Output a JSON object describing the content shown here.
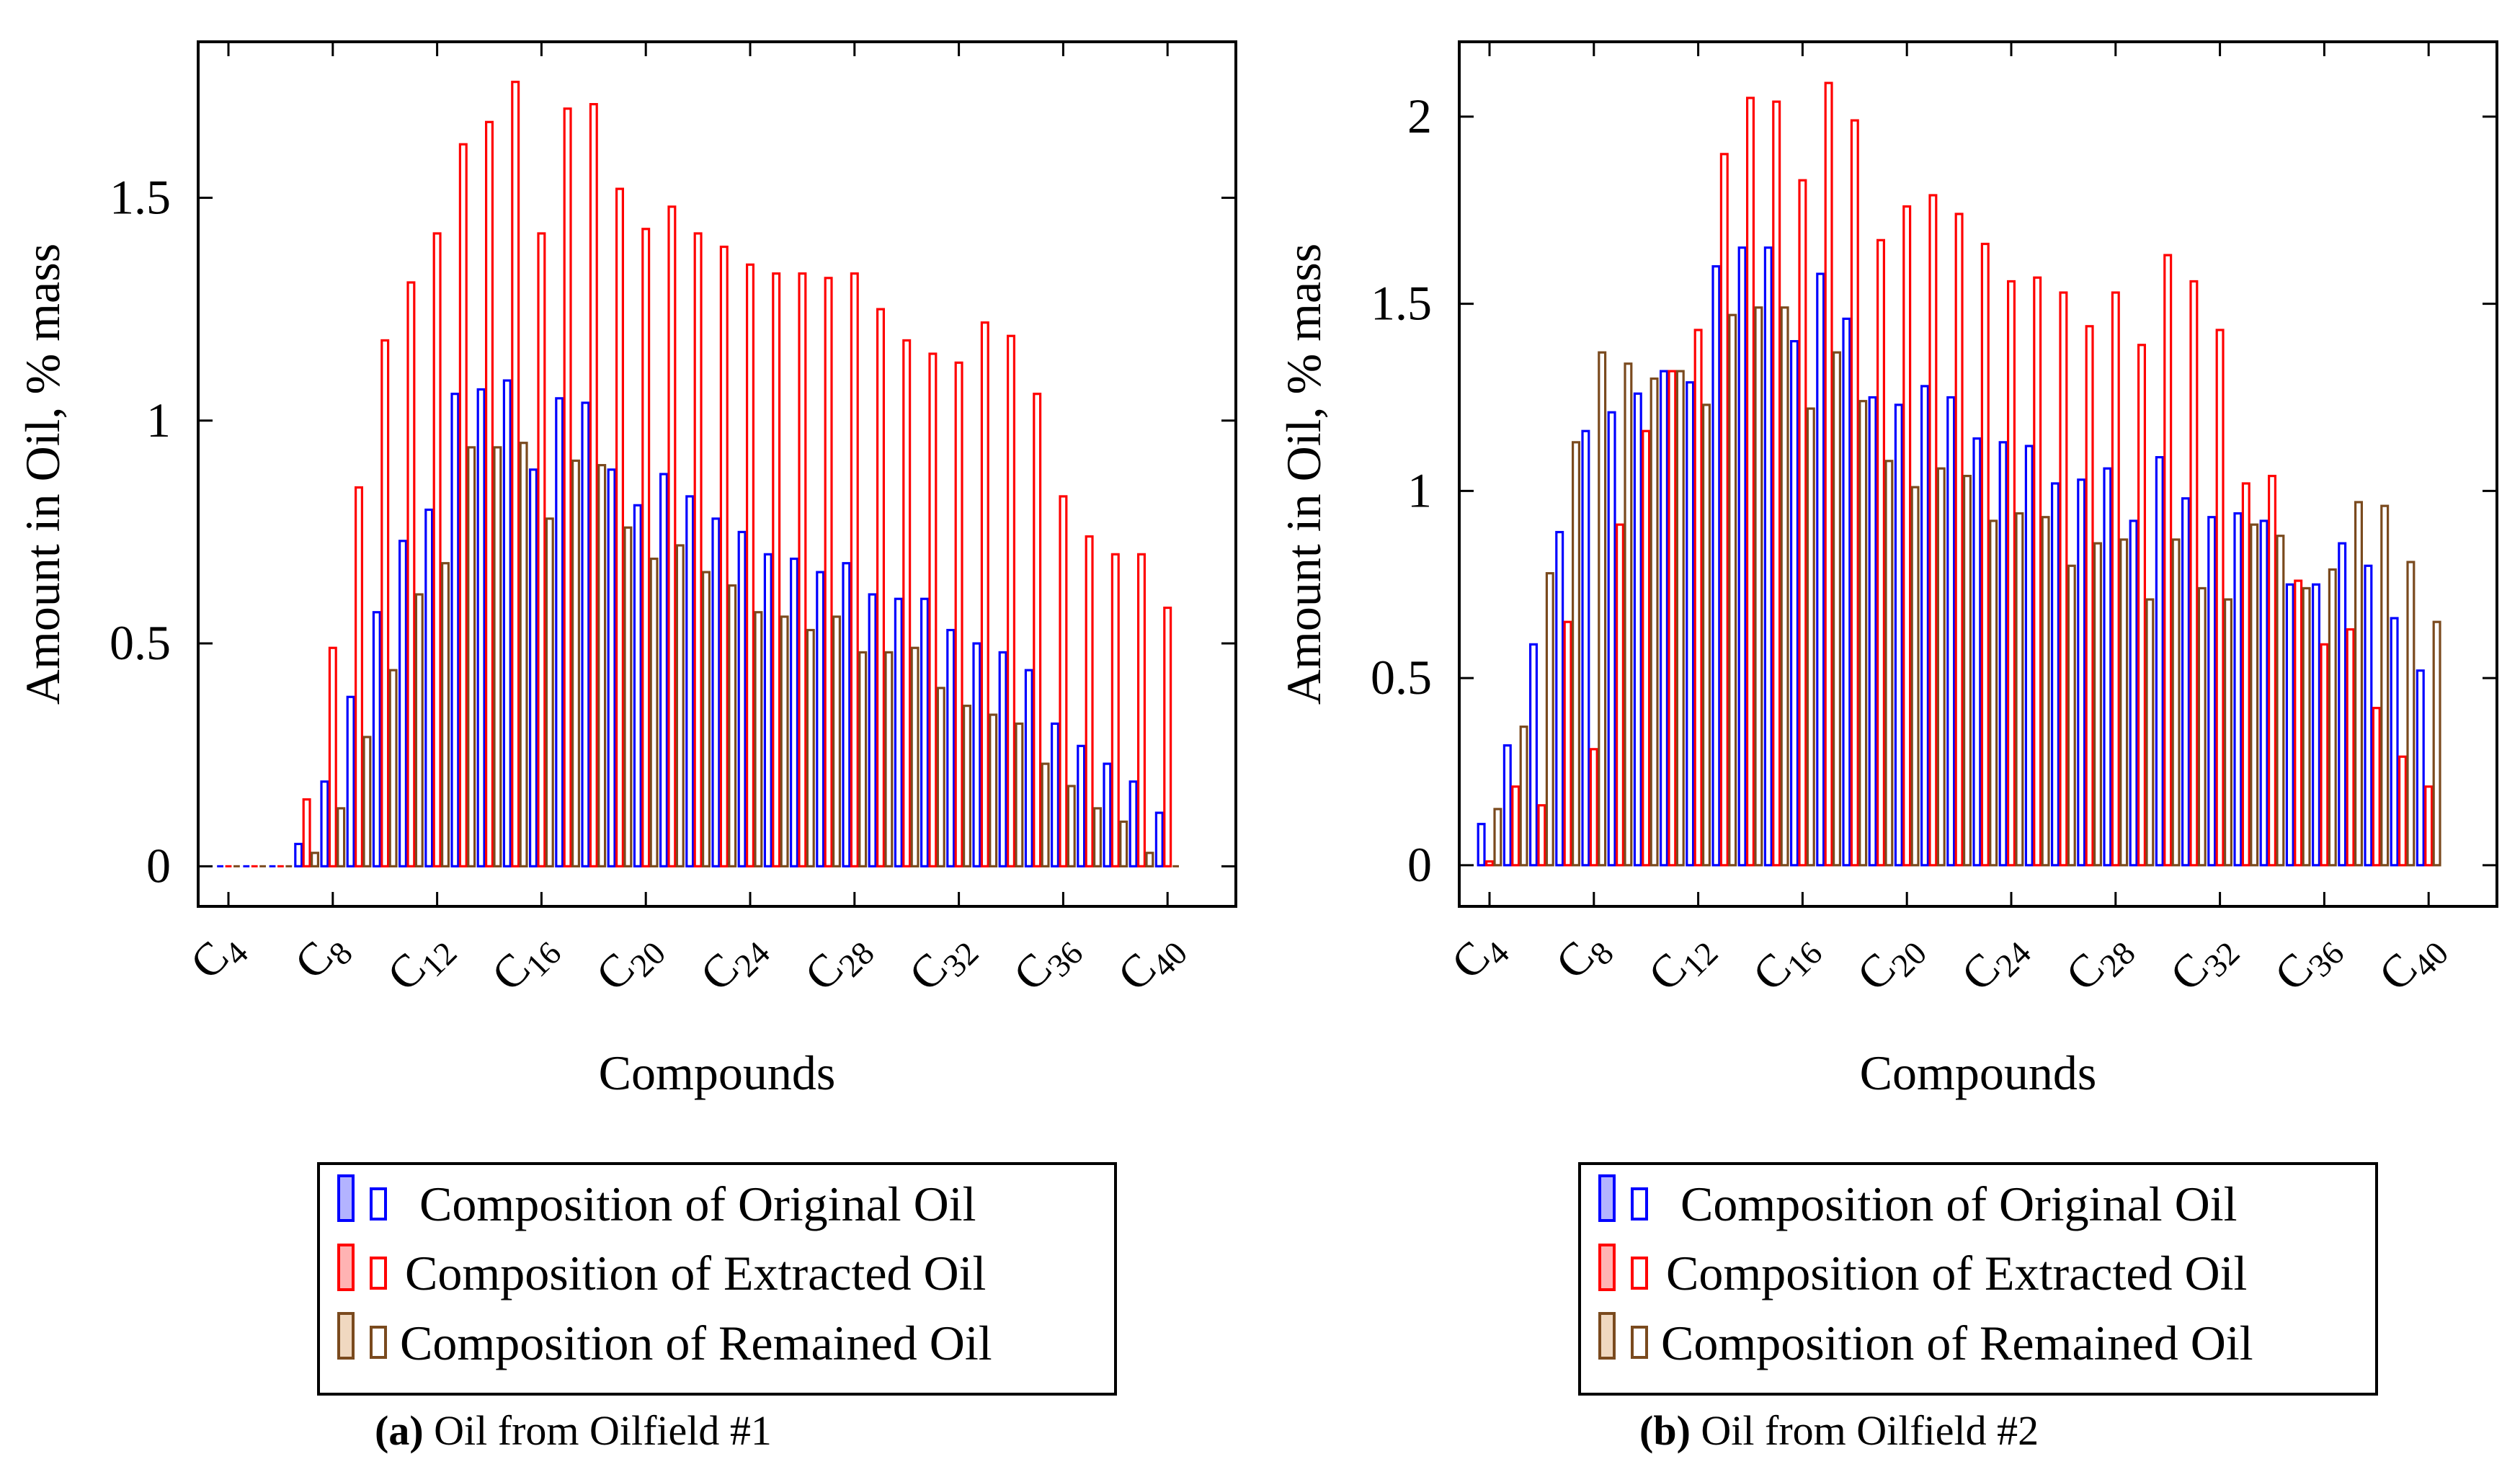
{
  "colors": {
    "original": "#0000ff",
    "original_fill": "#b3b3ff",
    "extracted": "#ff0000",
    "extracted_fill": "#ffb3b3",
    "remained": "#7a4a1e",
    "remained_fill": "#f0d8c0"
  },
  "chart_data": [
    {
      "type": "bar",
      "title": "",
      "xlabel": "Compounds",
      "ylabel": "Amount in Oil, % mass",
      "caption_label": "(a)",
      "caption_text": " Oil from Oilfield #1",
      "legend_position": "below",
      "ylim": [
        -0.09,
        1.85
      ],
      "yticks": [
        "0",
        "0.5",
        "1",
        "1.5"
      ],
      "ytick_values": [
        0,
        0.5,
        1,
        1.5
      ],
      "xtick_labels": [
        {
          "base": "C",
          "sub": "4"
        },
        {
          "base": "C",
          "sub": "8"
        },
        {
          "base": "C",
          "sub": "12"
        },
        {
          "base": "C",
          "sub": "16"
        },
        {
          "base": "C",
          "sub": "20"
        },
        {
          "base": "C",
          "sub": "24"
        },
        {
          "base": "C",
          "sub": "28"
        },
        {
          "base": "C",
          "sub": "32"
        },
        {
          "base": "C",
          "sub": "36"
        },
        {
          "base": "C",
          "sub": "40"
        }
      ],
      "categories": [
        "C4",
        "C5",
        "C6",
        "C7",
        "C8",
        "C9",
        "C10",
        "C11",
        "C12",
        "C13",
        "C14",
        "C15",
        "C16",
        "C17",
        "C18",
        "C19",
        "C20",
        "C21",
        "C22",
        "C23",
        "C24",
        "C25",
        "C26",
        "C27",
        "C28",
        "C29",
        "C30",
        "C31",
        "C32",
        "C33",
        "C34",
        "C35",
        "C36",
        "C37",
        "C38",
        "C39",
        "C40"
      ],
      "series": [
        {
          "name": "Composition of Original Oil",
          "key": "original",
          "values": [
            0,
            0,
            0,
            0.05,
            0.19,
            0.38,
            0.57,
            0.73,
            0.8,
            1.06,
            1.07,
            1.09,
            0.89,
            1.05,
            1.04,
            0.89,
            0.81,
            0.88,
            0.83,
            0.78,
            0.75,
            0.7,
            0.69,
            0.66,
            0.68,
            0.61,
            0.6,
            0.6,
            0.53,
            0.5,
            0.48,
            0.44,
            0.32,
            0.27,
            0.23,
            0.19,
            0.12
          ]
        },
        {
          "name": "Composition of Extracted Oil",
          "key": "extracted",
          "values": [
            0,
            0,
            0,
            0.15,
            0.49,
            0.85,
            1.18,
            1.31,
            1.42,
            1.62,
            1.67,
            1.76,
            1.42,
            1.7,
            1.71,
            1.52,
            1.43,
            1.48,
            1.42,
            1.39,
            1.35,
            1.33,
            1.33,
            1.32,
            1.33,
            1.25,
            1.18,
            1.15,
            1.13,
            1.22,
            1.19,
            1.06,
            0.83,
            0.74,
            0.7,
            0.7,
            0.58
          ]
        },
        {
          "name": "Composition of Remained Oil",
          "key": "remained",
          "values": [
            0,
            0,
            0,
            0.03,
            0.13,
            0.29,
            0.44,
            0.61,
            0.68,
            0.94,
            0.94,
            0.95,
            0.78,
            0.91,
            0.9,
            0.76,
            0.69,
            0.72,
            0.66,
            0.63,
            0.57,
            0.56,
            0.53,
            0.56,
            0.48,
            0.48,
            0.49,
            0.4,
            0.36,
            0.34,
            0.32,
            0.23,
            0.18,
            0.13,
            0.1,
            0.03,
            0
          ]
        }
      ]
    },
    {
      "type": "bar",
      "title": "",
      "xlabel": "Compounds",
      "ylabel": "Amount in Oil, % mass",
      "caption_label": "(b)",
      "caption_text": " Oil from Oilfield #2",
      "legend_position": "below",
      "ylim": [
        -0.11,
        2.2
      ],
      "yticks": [
        "0",
        "0.5",
        "1",
        "1.5",
        "2"
      ],
      "ytick_values": [
        0,
        0.5,
        1,
        1.5,
        2
      ],
      "xtick_labels": [
        {
          "base": "C",
          "sub": "4"
        },
        {
          "base": "C",
          "sub": "8"
        },
        {
          "base": "C",
          "sub": "12"
        },
        {
          "base": "C",
          "sub": "16"
        },
        {
          "base": "C",
          "sub": "20"
        },
        {
          "base": "C",
          "sub": "24"
        },
        {
          "base": "C",
          "sub": "28"
        },
        {
          "base": "C",
          "sub": "32"
        },
        {
          "base": "C",
          "sub": "36"
        },
        {
          "base": "C",
          "sub": "40"
        }
      ],
      "categories": [
        "C4",
        "C5",
        "C6",
        "C7",
        "C8",
        "C9",
        "C10",
        "C11",
        "C12",
        "C13",
        "C14",
        "C15",
        "C16",
        "C17",
        "C18",
        "C19",
        "C20",
        "C21",
        "C22",
        "C23",
        "C24",
        "C25",
        "C26",
        "C27",
        "C28",
        "C29",
        "C30",
        "C31",
        "C32",
        "C33",
        "C34",
        "C35",
        "C36",
        "C37",
        "C38",
        "C39",
        "C40"
      ],
      "series": [
        {
          "name": "Composition of Original Oil",
          "key": "original",
          "values": [
            0.11,
            0.32,
            0.59,
            0.89,
            1.16,
            1.21,
            1.26,
            1.32,
            1.29,
            1.6,
            1.65,
            1.65,
            1.4,
            1.58,
            1.46,
            1.25,
            1.23,
            1.28,
            1.25,
            1.14,
            1.13,
            1.12,
            1.02,
            1.03,
            1.06,
            0.92,
            1.09,
            0.98,
            0.93,
            0.94,
            0.92,
            0.75,
            0.75,
            0.86,
            0.8,
            0.66,
            0.52
          ]
        },
        {
          "name": "Composition of Extracted Oil",
          "key": "extracted",
          "values": [
            0.01,
            0.21,
            0.16,
            0.65,
            0.31,
            0.91,
            1.16,
            1.32,
            1.43,
            1.9,
            2.05,
            2.04,
            1.83,
            2.09,
            1.99,
            1.67,
            1.76,
            1.79,
            1.74,
            1.66,
            1.56,
            1.57,
            1.53,
            1.44,
            1.53,
            1.39,
            1.63,
            1.56,
            1.43,
            1.02,
            1.04,
            0.76,
            0.59,
            0.63,
            0.42,
            0.29,
            0.21
          ]
        },
        {
          "name": "Composition of Remained Oil",
          "key": "remained",
          "values": [
            0.15,
            0.37,
            0.78,
            1.13,
            1.37,
            1.34,
            1.3,
            1.32,
            1.23,
            1.47,
            1.49,
            1.49,
            1.22,
            1.37,
            1.24,
            1.08,
            1.01,
            1.06,
            1.04,
            0.92,
            0.94,
            0.93,
            0.8,
            0.86,
            0.87,
            0.71,
            0.87,
            0.74,
            0.71,
            0.91,
            0.88,
            0.74,
            0.79,
            0.97,
            0.96,
            0.81,
            0.65
          ]
        }
      ]
    }
  ]
}
